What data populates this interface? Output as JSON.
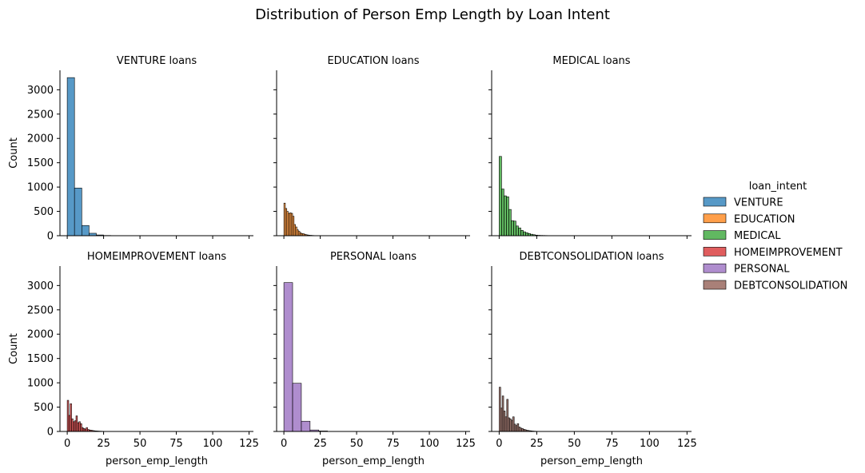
{
  "chart_data": {
    "type": "bar",
    "title": "Distribution of Person Emp Length by Loan Intent",
    "xlabel": "person_emp_length",
    "ylabel": "Count",
    "xlim": [
      -5,
      128
    ],
    "ylim": [
      0,
      3400
    ],
    "xticks": [
      0,
      25,
      50,
      75,
      100,
      125
    ],
    "yticks": [
      0,
      500,
      1000,
      1500,
      2000,
      2500,
      3000
    ],
    "grid": false,
    "legend": {
      "title": "loan_intent",
      "position": "right",
      "entries": [
        "VENTURE",
        "EDUCATION",
        "MEDICAL",
        "HOMEIMPROVEMENT",
        "PERSONAL",
        "DEBTCONSOLIDATION"
      ]
    },
    "panels": [
      {
        "title": "VENTURE loans",
        "series": "VENTURE",
        "color": "#1f77b4",
        "bins": [
          {
            "x0": 0,
            "x1": 5,
            "count": 3250
          },
          {
            "x0": 5,
            "x1": 10,
            "count": 980
          },
          {
            "x0": 10,
            "x1": 15,
            "count": 210
          },
          {
            "x0": 15,
            "x1": 20,
            "count": 50
          },
          {
            "x0": 20,
            "x1": 25,
            "count": 15
          },
          {
            "x0": 25,
            "x1": 30,
            "count": 5
          },
          {
            "x0": 30,
            "x1": 35,
            "count": 2
          }
        ]
      },
      {
        "title": "EDUCATION loans",
        "series": "EDUCATION",
        "color": "#ff7f0e",
        "bins": [
          {
            "x0": 0,
            "x1": 1,
            "count": 670
          },
          {
            "x0": 1,
            "x1": 2,
            "count": 560
          },
          {
            "x0": 2,
            "x1": 3,
            "count": 500
          },
          {
            "x0": 3,
            "x1": 4,
            "count": 460
          },
          {
            "x0": 4,
            "x1": 5,
            "count": 470
          },
          {
            "x0": 5,
            "x1": 6,
            "count": 460
          },
          {
            "x0": 6,
            "x1": 7,
            "count": 400
          },
          {
            "x0": 7,
            "x1": 8,
            "count": 230
          },
          {
            "x0": 8,
            "x1": 9,
            "count": 180
          },
          {
            "x0": 9,
            "x1": 10,
            "count": 120
          },
          {
            "x0": 10,
            "x1": 11,
            "count": 90
          },
          {
            "x0": 11,
            "x1": 12,
            "count": 60
          },
          {
            "x0": 12,
            "x1": 13,
            "count": 45
          },
          {
            "x0": 13,
            "x1": 14,
            "count": 40
          },
          {
            "x0": 14,
            "x1": 15,
            "count": 30
          },
          {
            "x0": 15,
            "x1": 16,
            "count": 20
          },
          {
            "x0": 16,
            "x1": 17,
            "count": 15
          },
          {
            "x0": 17,
            "x1": 18,
            "count": 10
          },
          {
            "x0": 18,
            "x1": 19,
            "count": 8
          },
          {
            "x0": 19,
            "x1": 20,
            "count": 6
          },
          {
            "x0": 20,
            "x1": 21,
            "count": 4
          },
          {
            "x0": 21,
            "x1": 22,
            "count": 3
          },
          {
            "x0": 22,
            "x1": 23,
            "count": 2
          },
          {
            "x0": 23,
            "x1": 24,
            "count": 2
          }
        ]
      },
      {
        "title": "MEDICAL loans",
        "series": "MEDICAL",
        "color": "#2ca02c",
        "bins": [
          {
            "x0": 0,
            "x1": 1.6,
            "count": 1630
          },
          {
            "x0": 1.6,
            "x1": 3.2,
            "count": 960
          },
          {
            "x0": 3.2,
            "x1": 4.8,
            "count": 820
          },
          {
            "x0": 4.8,
            "x1": 6.4,
            "count": 800
          },
          {
            "x0": 6.4,
            "x1": 8.0,
            "count": 540
          },
          {
            "x0": 8.0,
            "x1": 9.6,
            "count": 310
          },
          {
            "x0": 9.6,
            "x1": 11.2,
            "count": 300
          },
          {
            "x0": 11.2,
            "x1": 12.8,
            "count": 200
          },
          {
            "x0": 12.8,
            "x1": 14.4,
            "count": 160
          },
          {
            "x0": 14.4,
            "x1": 16.0,
            "count": 110
          },
          {
            "x0": 16.0,
            "x1": 17.6,
            "count": 80
          },
          {
            "x0": 17.6,
            "x1": 19.2,
            "count": 60
          },
          {
            "x0": 19.2,
            "x1": 20.8,
            "count": 45
          },
          {
            "x0": 20.8,
            "x1": 22.4,
            "count": 30
          },
          {
            "x0": 22.4,
            "x1": 24.0,
            "count": 20
          },
          {
            "x0": 24.0,
            "x1": 25.6,
            "count": 12
          },
          {
            "x0": 25.6,
            "x1": 27.2,
            "count": 8
          },
          {
            "x0": 27.2,
            "x1": 28.8,
            "count": 6
          },
          {
            "x0": 28.8,
            "x1": 30.4,
            "count": 5
          },
          {
            "x0": 30.4,
            "x1": 32.0,
            "count": 4
          },
          {
            "x0": 32.0,
            "x1": 33.6,
            "count": 3
          },
          {
            "x0": 33.6,
            "x1": 35.2,
            "count": 3
          },
          {
            "x0": 35.2,
            "x1": 36.8,
            "count": 2
          },
          {
            "x0": 36.8,
            "x1": 38.4,
            "count": 2
          },
          {
            "x0": 38.4,
            "x1": 40.0,
            "count": 1
          },
          {
            "x0": 40.0,
            "x1": 41.6,
            "count": 1
          }
        ]
      },
      {
        "title": "HOMEIMPROVEMENT loans",
        "series": "HOMEIMPROVEMENT",
        "color": "#d62728",
        "bins": [
          {
            "x0": 0,
            "x1": 1,
            "count": 640
          },
          {
            "x0": 1,
            "x1": 2,
            "count": 330
          },
          {
            "x0": 2,
            "x1": 3,
            "count": 570
          },
          {
            "x0": 3,
            "x1": 4,
            "count": 260
          },
          {
            "x0": 4,
            "x1": 5,
            "count": 200
          },
          {
            "x0": 5,
            "x1": 6,
            "count": 220
          },
          {
            "x0": 6,
            "x1": 7,
            "count": 320
          },
          {
            "x0": 7,
            "x1": 8,
            "count": 180
          },
          {
            "x0": 8,
            "x1": 9,
            "count": 200
          },
          {
            "x0": 9,
            "x1": 10,
            "count": 160
          },
          {
            "x0": 10,
            "x1": 11,
            "count": 80
          },
          {
            "x0": 11,
            "x1": 12,
            "count": 60
          },
          {
            "x0": 12,
            "x1": 13,
            "count": 50
          },
          {
            "x0": 13,
            "x1": 14,
            "count": 80
          },
          {
            "x0": 14,
            "x1": 15,
            "count": 40
          },
          {
            "x0": 15,
            "x1": 16,
            "count": 30
          },
          {
            "x0": 16,
            "x1": 17,
            "count": 25
          },
          {
            "x0": 17,
            "x1": 18,
            "count": 20
          },
          {
            "x0": 18,
            "x1": 19,
            "count": 15
          },
          {
            "x0": 19,
            "x1": 20,
            "count": 12
          },
          {
            "x0": 20,
            "x1": 21,
            "count": 10
          },
          {
            "x0": 21,
            "x1": 22,
            "count": 8
          },
          {
            "x0": 22,
            "x1": 23,
            "count": 6
          },
          {
            "x0": 23,
            "x1": 24,
            "count": 5
          },
          {
            "x0": 24,
            "x1": 25,
            "count": 4
          },
          {
            "x0": 25,
            "x1": 26,
            "count": 3
          },
          {
            "x0": 26,
            "x1": 27,
            "count": 2
          }
        ]
      },
      {
        "title": "PERSONAL loans",
        "series": "PERSONAL",
        "color": "#9467bd",
        "bins": [
          {
            "x0": 0,
            "x1": 6,
            "count": 3060
          },
          {
            "x0": 6,
            "x1": 12,
            "count": 990
          },
          {
            "x0": 12,
            "x1": 18,
            "count": 210
          },
          {
            "x0": 18,
            "x1": 24,
            "count": 30
          },
          {
            "x0": 24,
            "x1": 30,
            "count": 10
          },
          {
            "x0": 30,
            "x1": 36,
            "count": 3
          }
        ]
      },
      {
        "title": "DEBTCONSOLIDATION loans",
        "series": "DEBTCONSOLIDATION",
        "color": "#8c564b",
        "bins": [
          {
            "x0": 0,
            "x1": 1,
            "count": 910
          },
          {
            "x0": 1,
            "x1": 2,
            "count": 480
          },
          {
            "x0": 2,
            "x1": 3,
            "count": 730
          },
          {
            "x0": 3,
            "x1": 4,
            "count": 420
          },
          {
            "x0": 4,
            "x1": 5,
            "count": 300
          },
          {
            "x0": 5,
            "x1": 6,
            "count": 660
          },
          {
            "x0": 6,
            "x1": 7,
            "count": 280
          },
          {
            "x0": 7,
            "x1": 8,
            "count": 260
          },
          {
            "x0": 8,
            "x1": 9,
            "count": 230
          },
          {
            "x0": 9,
            "x1": 10,
            "count": 300
          },
          {
            "x0": 10,
            "x1": 11,
            "count": 150
          },
          {
            "x0": 11,
            "x1": 12,
            "count": 120
          },
          {
            "x0": 12,
            "x1": 13,
            "count": 160
          },
          {
            "x0": 13,
            "x1": 14,
            "count": 90
          },
          {
            "x0": 14,
            "x1": 15,
            "count": 70
          },
          {
            "x0": 15,
            "x1": 16,
            "count": 60
          },
          {
            "x0": 16,
            "x1": 17,
            "count": 45
          },
          {
            "x0": 17,
            "x1": 18,
            "count": 35
          },
          {
            "x0": 18,
            "x1": 19,
            "count": 25
          },
          {
            "x0": 19,
            "x1": 20,
            "count": 20
          },
          {
            "x0": 20,
            "x1": 21,
            "count": 15
          },
          {
            "x0": 21,
            "x1": 22,
            "count": 12
          },
          {
            "x0": 22,
            "x1": 23,
            "count": 8
          },
          {
            "x0": 23,
            "x1": 24,
            "count": 6
          },
          {
            "x0": 24,
            "x1": 25,
            "count": 4
          },
          {
            "x0": 25,
            "x1": 26,
            "count": 3
          },
          {
            "x0": 26,
            "x1": 27,
            "count": 2
          }
        ]
      }
    ]
  }
}
